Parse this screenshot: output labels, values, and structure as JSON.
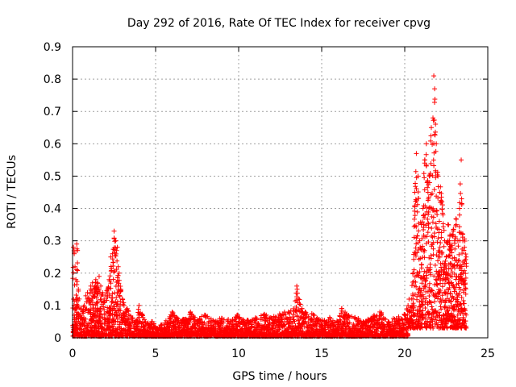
{
  "chart_data": {
    "type": "scatter",
    "title": "Day 292 of 2016, Rate Of TEC Index for receiver cpvg",
    "xlabel": "GPS time / hours",
    "ylabel": "ROTI / TECUs",
    "xlim": [
      0,
      25
    ],
    "ylim": [
      0,
      0.9
    ],
    "xticks": [
      0,
      5,
      10,
      15,
      20,
      25
    ],
    "yticks": [
      0,
      0.1,
      0.2,
      0.3,
      0.4,
      0.5,
      0.6,
      0.7,
      0.8,
      0.9
    ],
    "grid": true,
    "marker": "+",
    "color": "#ff0000",
    "series": [
      {
        "name": "ROTI",
        "x": [
          0.05,
          0.1,
          0.15,
          0.2,
          0.25,
          0.3,
          0.35,
          0.4,
          0.5,
          0.6,
          0.7,
          0.8,
          0.9,
          1.0,
          1.1,
          1.2,
          1.3,
          1.4,
          1.5,
          1.6,
          1.7,
          1.8,
          1.9,
          2.0,
          2.1,
          2.2,
          2.3,
          2.4,
          2.5,
          2.6,
          2.65,
          2.7,
          2.75,
          2.8,
          2.9,
          3.0,
          3.1,
          3.2,
          3.3,
          3.4,
          3.6,
          3.8,
          4.0,
          4.2,
          4.4,
          4.6,
          4.8,
          5.0,
          5.5,
          6.0,
          6.1,
          6.5,
          7.0,
          7.1,
          7.5,
          8.0,
          8.5,
          9.0,
          9.5,
          9.9,
          10.0,
          10.5,
          11.0,
          11.5,
          12.0,
          12.5,
          13.0,
          13.3,
          13.5,
          13.6,
          14.0,
          14.5,
          15.0,
          15.5,
          16.0,
          16.2,
          16.5,
          17.0,
          17.5,
          18.0,
          18.5,
          19.0,
          19.5,
          20.0,
          20.2,
          20.4,
          20.5,
          20.6,
          20.7,
          20.8,
          20.9,
          21.0,
          21.1,
          21.2,
          21.3,
          21.4,
          21.5,
          21.6,
          21.7,
          21.75,
          21.8,
          21.9,
          22.0,
          22.1,
          22.2,
          22.3,
          22.4,
          22.5,
          22.6,
          22.7,
          22.8,
          22.9,
          23.0,
          23.1,
          23.2,
          23.3,
          23.4,
          23.5,
          23.6,
          23.7
        ],
        "y": [
          0.28,
          0.26,
          0.22,
          0.18,
          0.29,
          0.27,
          0.15,
          0.12,
          0.09,
          0.08,
          0.1,
          0.13,
          0.14,
          0.12,
          0.16,
          0.17,
          0.15,
          0.18,
          0.17,
          0.19,
          0.16,
          0.14,
          0.12,
          0.13,
          0.15,
          0.18,
          0.25,
          0.26,
          0.33,
          0.3,
          0.27,
          0.28,
          0.22,
          0.2,
          0.15,
          0.12,
          0.1,
          0.08,
          0.09,
          0.07,
          0.06,
          0.05,
          0.1,
          0.07,
          0.05,
          0.04,
          0.05,
          0.03,
          0.04,
          0.08,
          0.07,
          0.05,
          0.06,
          0.08,
          0.05,
          0.07,
          0.05,
          0.06,
          0.05,
          0.07,
          0.06,
          0.05,
          0.06,
          0.07,
          0.06,
          0.07,
          0.08,
          0.09,
          0.16,
          0.12,
          0.08,
          0.07,
          0.05,
          0.06,
          0.05,
          0.09,
          0.07,
          0.06,
          0.05,
          0.06,
          0.08,
          0.05,
          0.06,
          0.07,
          0.1,
          0.12,
          0.2,
          0.45,
          0.57,
          0.5,
          0.3,
          0.35,
          0.4,
          0.55,
          0.6,
          0.45,
          0.5,
          0.65,
          0.68,
          0.81,
          0.77,
          0.6,
          0.5,
          0.45,
          0.42,
          0.38,
          0.3,
          0.25,
          0.35,
          0.3,
          0.28,
          0.32,
          0.3,
          0.35,
          0.3,
          0.4,
          0.55,
          0.3,
          0.28,
          0.25
        ]
      }
    ]
  }
}
